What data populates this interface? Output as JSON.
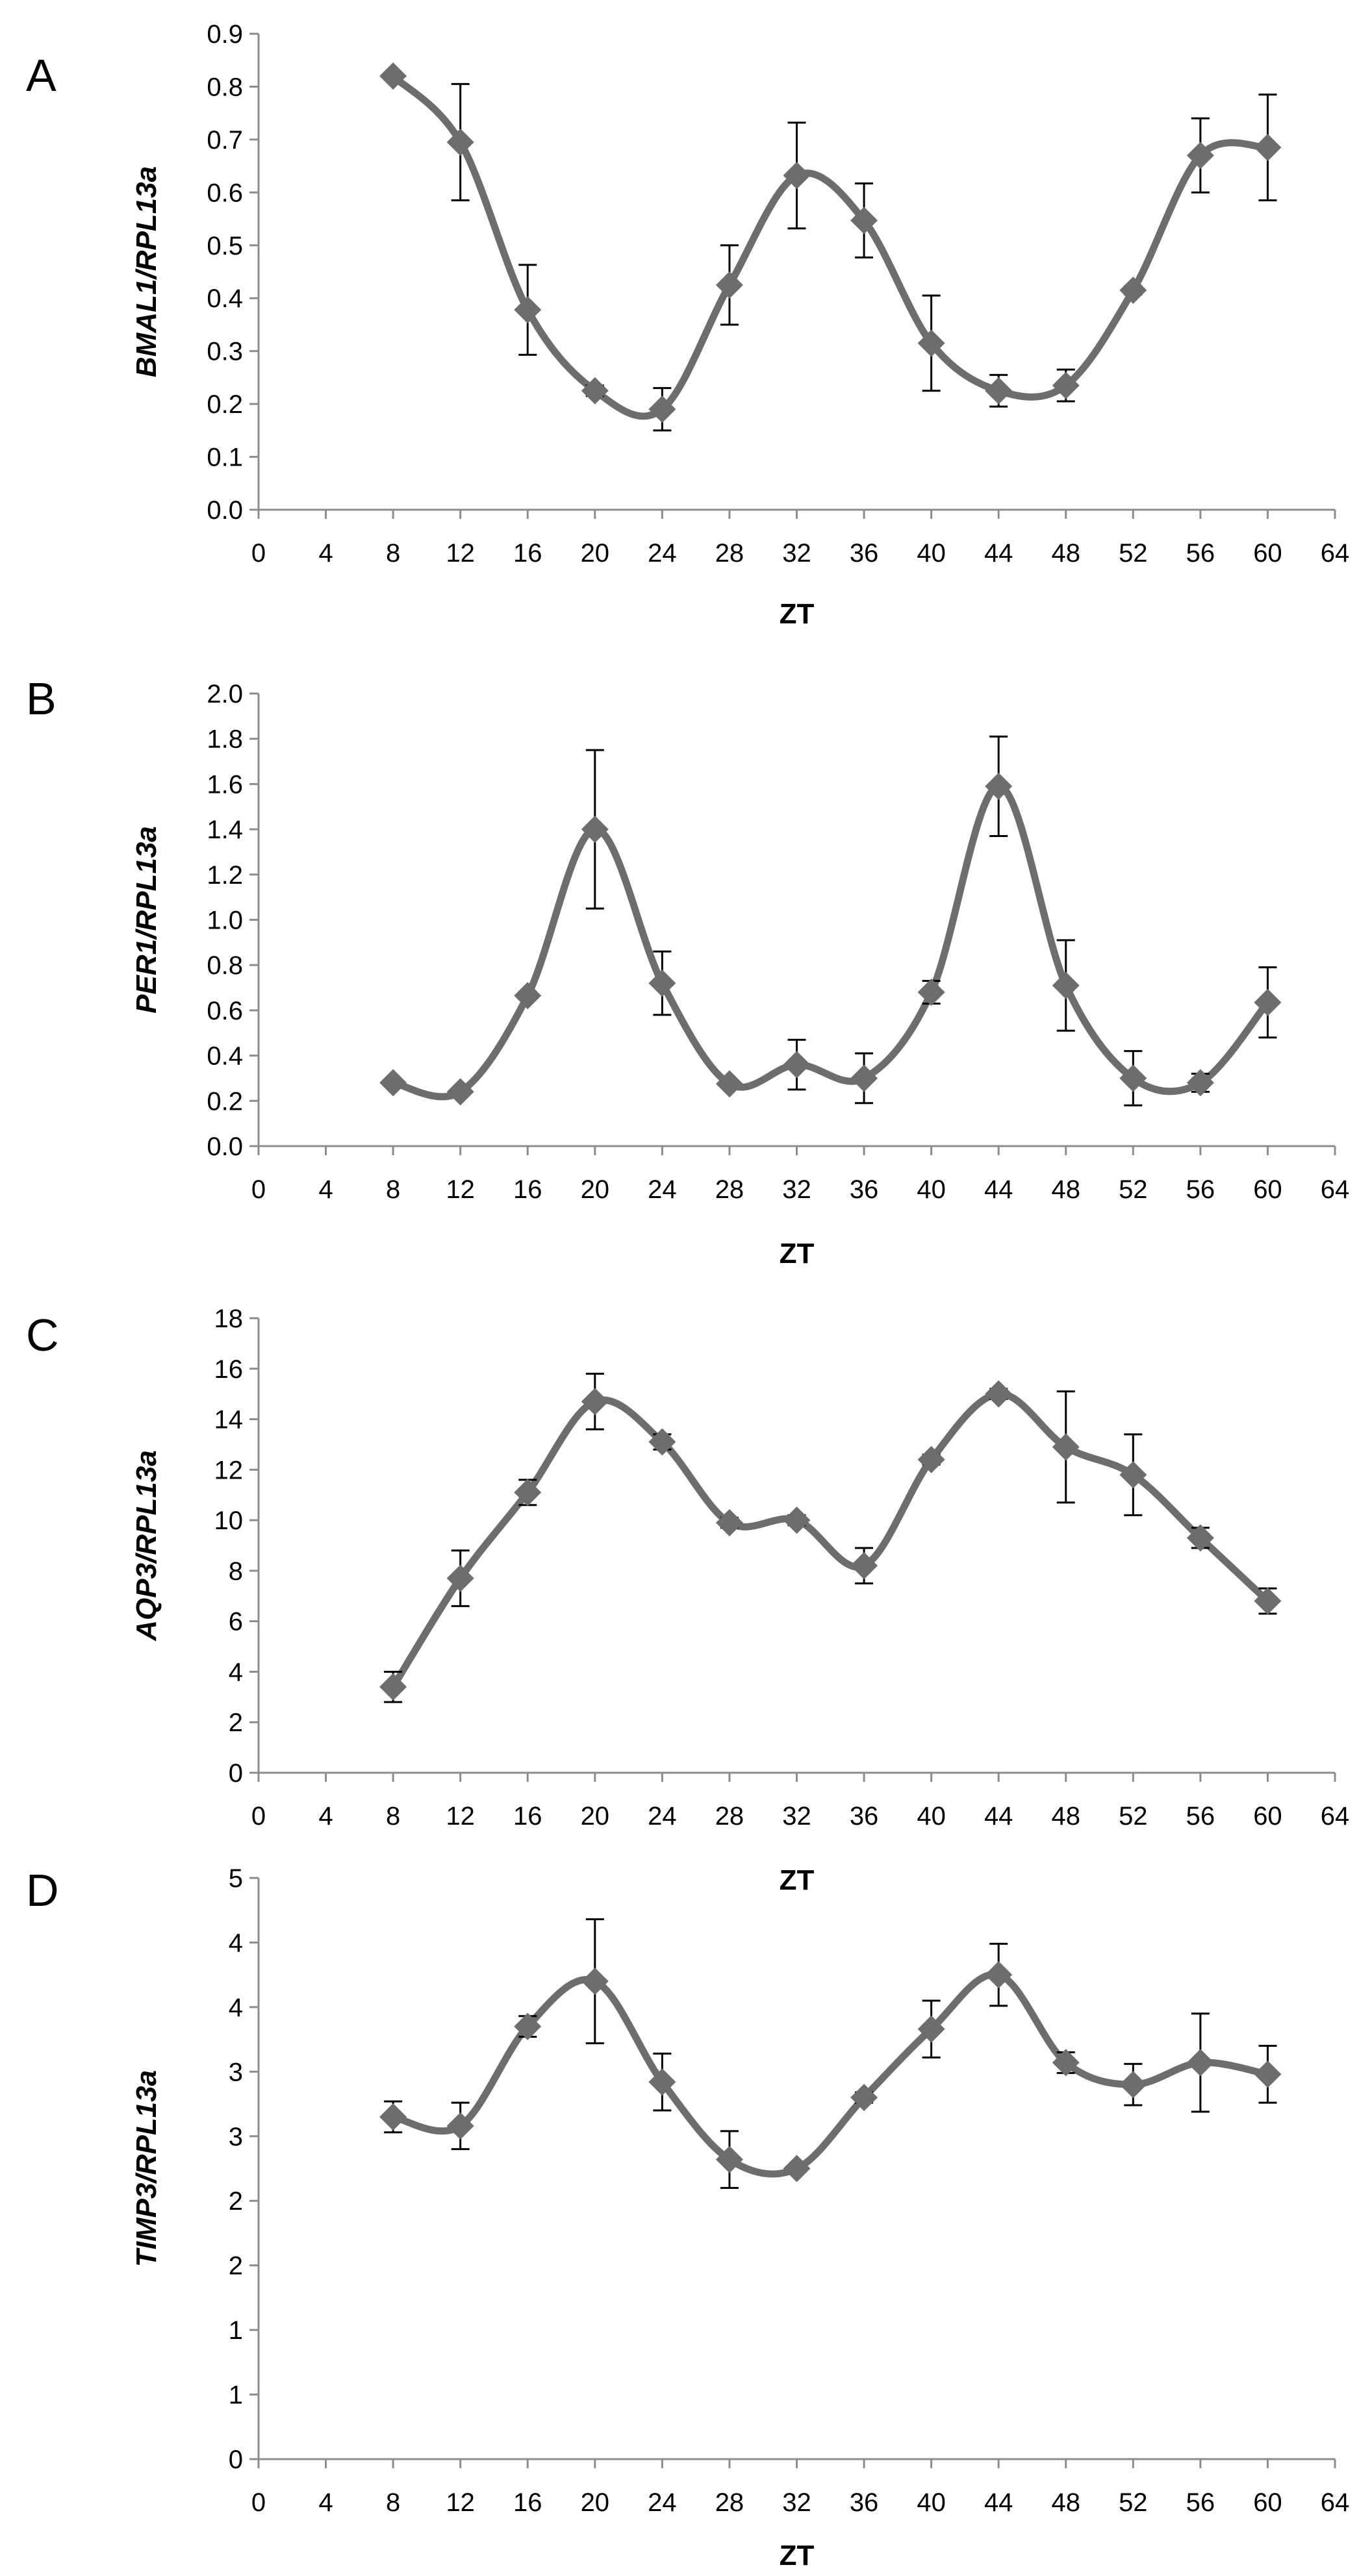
{
  "colors": {
    "series": "#6d6d6d",
    "axis": "#8c8c8c",
    "error_bar": "#000000",
    "text": "#000000"
  },
  "chart_data": [
    {
      "type": "line",
      "panel": "A",
      "xlabel": "ZT",
      "ylabel": "BMAL1/RPL13a",
      "x_ticks": [
        "0",
        "4",
        "8",
        "12",
        "16",
        "20",
        "24",
        "28",
        "32",
        "36",
        "40",
        "44",
        "48",
        "52",
        "56",
        "60",
        "64"
      ],
      "y_ticks": [
        "0.0",
        "0.1",
        "0.2",
        "0.3",
        "0.4",
        "0.5",
        "0.6",
        "0.7",
        "0.8",
        "0.9"
      ],
      "xlim": [
        0,
        64
      ],
      "ylim": [
        0,
        0.9
      ],
      "x": [
        8,
        12,
        16,
        20,
        24,
        28,
        32,
        36,
        40,
        44,
        48,
        52,
        56,
        60
      ],
      "values": [
        0.82,
        0.695,
        0.378,
        0.225,
        0.19,
        0.425,
        0.632,
        0.547,
        0.315,
        0.225,
        0.235,
        0.415,
        0.67,
        0.685
      ],
      "errors": [
        0,
        0.11,
        0.085,
        0.01,
        0.04,
        0.075,
        0.1,
        0.07,
        0.09,
        0.03,
        0.03,
        0.008,
        0.07,
        0.1
      ]
    },
    {
      "type": "line",
      "panel": "B",
      "xlabel": "ZT",
      "ylabel": "PER1/RPL13a",
      "x_ticks": [
        "0",
        "4",
        "8",
        "12",
        "16",
        "20",
        "24",
        "28",
        "32",
        "36",
        "40",
        "44",
        "48",
        "52",
        "56",
        "60",
        "64"
      ],
      "y_ticks": [
        "0.0",
        "0.2",
        "0.4",
        "0.6",
        "0.8",
        "1.0",
        "1.2",
        "1.4",
        "1.6",
        "1.8",
        "2.0"
      ],
      "xlim": [
        0,
        64
      ],
      "ylim": [
        0,
        2.0
      ],
      "x": [
        8,
        12,
        16,
        20,
        24,
        28,
        32,
        36,
        40,
        44,
        48,
        52,
        56,
        60
      ],
      "values": [
        0.28,
        0.24,
        0.665,
        1.4,
        0.72,
        0.275,
        0.36,
        0.3,
        0.68,
        1.59,
        0.71,
        0.3,
        0.28,
        0.635
      ],
      "errors": [
        0,
        0.01,
        0.01,
        0.35,
        0.14,
        0.01,
        0.11,
        0.11,
        0.05,
        0.22,
        0.2,
        0.12,
        0.04,
        0.155
      ]
    },
    {
      "type": "line",
      "panel": "C",
      "xlabel": "ZT",
      "ylabel": "AQP3/RPL13a",
      "x_ticks": [
        "0",
        "4",
        "8",
        "12",
        "16",
        "20",
        "24",
        "28",
        "32",
        "36",
        "40",
        "44",
        "48",
        "52",
        "56",
        "60",
        "64"
      ],
      "y_ticks": [
        "0",
        "2",
        "4",
        "6",
        "8",
        "10",
        "12",
        "14",
        "16",
        "18"
      ],
      "xlim": [
        0,
        64
      ],
      "ylim": [
        0,
        18
      ],
      "x": [
        8,
        12,
        16,
        20,
        24,
        28,
        32,
        36,
        40,
        44,
        48,
        52,
        56,
        60
      ],
      "values": [
        3.4,
        7.7,
        11.1,
        14.7,
        13.1,
        9.9,
        10.0,
        8.2,
        12.4,
        15.0,
        12.9,
        11.8,
        9.3,
        6.8
      ],
      "errors": [
        0.6,
        1.1,
        0.5,
        1.1,
        0.3,
        0.2,
        0.2,
        0.7,
        0.2,
        0.2,
        2.2,
        1.6,
        0.4,
        0.5
      ]
    },
    {
      "type": "line",
      "panel": "D",
      "xlabel": "ZT",
      "ylabel": "TIMP3/RPL13a",
      "x_ticks": [
        "0",
        "4",
        "8",
        "12",
        "16",
        "20",
        "24",
        "28",
        "32",
        "36",
        "40",
        "44",
        "48",
        "52",
        "56",
        "60",
        "64"
      ],
      "y_ticks": [
        "0",
        "1",
        "1",
        "2",
        "2",
        "3",
        "3",
        "4",
        "4",
        "5"
      ],
      "ylim_note": "tick labels shown as printed (rounded values at 0.5 steps)",
      "xlim": [
        0,
        64
      ],
      "ylim": [
        0,
        4.5
      ],
      "x": [
        8,
        12,
        16,
        20,
        24,
        28,
        32,
        36,
        40,
        44,
        48,
        52,
        56,
        60
      ],
      "values": [
        2.65,
        2.58,
        3.35,
        3.7,
        2.92,
        2.32,
        2.25,
        2.8,
        3.33,
        3.75,
        3.07,
        2.9,
        3.07,
        2.98
      ],
      "errors": [
        0.12,
        0.18,
        0.08,
        0.48,
        0.22,
        0.22,
        0.02,
        0.04,
        0.22,
        0.24,
        0.08,
        0.16,
        0.38,
        0.22
      ]
    }
  ]
}
